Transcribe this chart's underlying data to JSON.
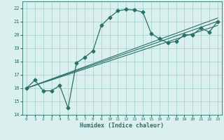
{
  "xlabel": "Humidex (Indice chaleur)",
  "xlim": [
    -0.5,
    23.5
  ],
  "ylim": [
    14,
    22.5
  ],
  "yticks": [
    14,
    15,
    16,
    17,
    18,
    19,
    20,
    21,
    22
  ],
  "xticks": [
    0,
    1,
    2,
    3,
    4,
    5,
    6,
    7,
    8,
    9,
    10,
    11,
    12,
    13,
    14,
    15,
    16,
    17,
    18,
    19,
    20,
    21,
    22,
    23
  ],
  "bg_color": "#daf0ee",
  "grid_color": "#aad4cc",
  "line_color": "#2a7068",
  "main_line": {
    "x": [
      0,
      1,
      2,
      3,
      4,
      5,
      6,
      7,
      8,
      9,
      10,
      11,
      12,
      13,
      14,
      15,
      16,
      17,
      18,
      19,
      20,
      21,
      22,
      23
    ],
    "y": [
      16.0,
      16.6,
      15.8,
      15.8,
      16.2,
      14.5,
      17.9,
      18.3,
      18.8,
      20.7,
      21.3,
      21.8,
      21.9,
      21.85,
      21.7,
      20.1,
      19.7,
      19.4,
      19.5,
      20.0,
      20.0,
      20.5,
      20.2,
      21.0
    ]
  },
  "trend_lines": [
    {
      "x": [
        0,
        23
      ],
      "y": [
        16.0,
        20.7
      ]
    },
    {
      "x": [
        0,
        23
      ],
      "y": [
        16.0,
        21.0
      ]
    },
    {
      "x": [
        0,
        23
      ],
      "y": [
        16.0,
        21.25
      ]
    }
  ]
}
